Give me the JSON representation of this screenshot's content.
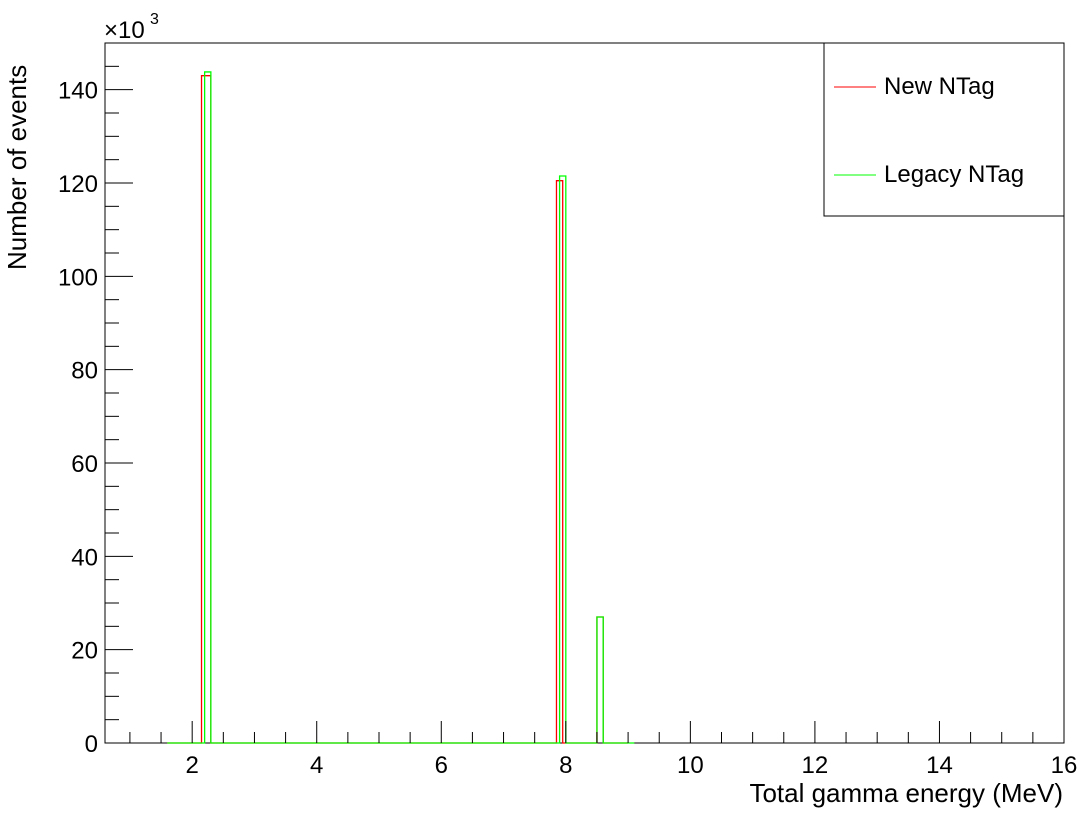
{
  "chart_data": {
    "type": "histogram",
    "title": "",
    "xlabel": "Total gamma energy (MeV)",
    "ylabel": "Number of events",
    "y_exponent": {
      "base": "×10",
      "power": "3"
    },
    "xlim": [
      0.6,
      16
    ],
    "ylim": [
      0,
      150
    ],
    "x_ticks": [
      2,
      4,
      6,
      8,
      10,
      12,
      14,
      16
    ],
    "y_ticks": [
      0,
      20,
      40,
      60,
      80,
      100,
      120,
      140
    ],
    "grid": false,
    "legend_position": "top-right",
    "series": [
      {
        "name": "New NTag",
        "color": "#ff0000",
        "x_range": [
          1.6,
          9.0
        ],
        "bins": [
          {
            "x0": 2.15,
            "x1": 2.3,
            "y": 143
          },
          {
            "x0": 7.85,
            "x1": 7.95,
            "y": 120.5
          },
          {
            "x0": 8.5,
            "x1": 8.6,
            "y": 27
          }
        ]
      },
      {
        "name": "Legacy NTag",
        "color": "#00ff00",
        "x_range": [
          1.6,
          9.1
        ],
        "bins": [
          {
            "x0": 2.2,
            "x1": 2.3,
            "y": 143.8
          },
          {
            "x0": 7.9,
            "x1": 8.0,
            "y": 121.5
          },
          {
            "x0": 8.5,
            "x1": 8.6,
            "y": 27
          }
        ]
      }
    ]
  }
}
